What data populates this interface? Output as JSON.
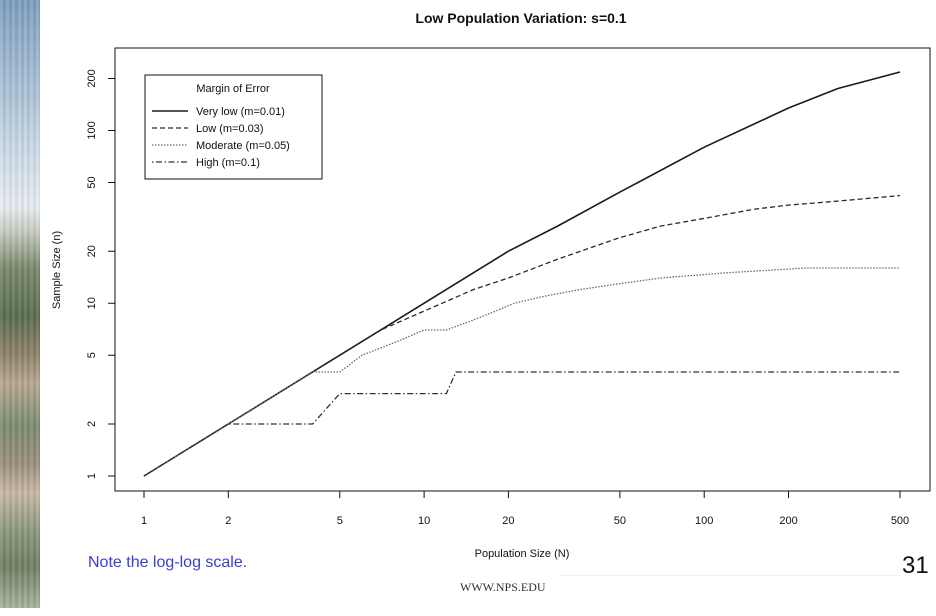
{
  "slide": {
    "note": "Note the log-log scale.",
    "footer": "WWW.NPS.EDU",
    "page_number": "31"
  },
  "chart_data": {
    "type": "line",
    "title": "Low Population Variation: s=0.1",
    "xlabel": "Population Size (N)",
    "ylabel": "Sample Size (n)",
    "x_scale": "log",
    "y_scale": "log",
    "xlim": [
      1,
      500
    ],
    "ylim": [
      1,
      230
    ],
    "x_ticks": [
      1,
      2,
      5,
      10,
      20,
      50,
      100,
      200,
      500
    ],
    "y_ticks": [
      1,
      2,
      5,
      10,
      20,
      50,
      100,
      200
    ],
    "grid": false,
    "legend": {
      "title": "Margin of Error",
      "position": "top-left"
    },
    "series": [
      {
        "name": "Very low (m=0.01)",
        "dash": "solid",
        "x": [
          1,
          2,
          5,
          10,
          20,
          30,
          50,
          100,
          200,
          300,
          500
        ],
        "y": [
          1,
          2,
          5,
          10,
          20,
          28,
          44,
          80,
          135,
          175,
          218
        ]
      },
      {
        "name": "Low (m=0.03)",
        "dash": "dashed",
        "x": [
          1,
          2,
          5,
          7,
          10,
          15,
          20,
          30,
          50,
          70,
          100,
          150,
          200,
          300,
          500
        ],
        "y": [
          1,
          2,
          5,
          7,
          9,
          12,
          14,
          18,
          24,
          28,
          31,
          35,
          37,
          39,
          42
        ]
      },
      {
        "name": "Moderate (m=0.05)",
        "dash": "dotted",
        "x": [
          1,
          2,
          4,
          5,
          6,
          8,
          10,
          12,
          15,
          18,
          21,
          27,
          36,
          50,
          70,
          120,
          230,
          500
        ],
        "y": [
          1,
          2,
          4,
          4,
          5,
          6,
          7,
          7,
          8,
          9,
          10,
          11,
          12,
          13,
          14,
          15,
          16,
          16
        ]
      },
      {
        "name": "High (m=0.1)",
        "dash": "dotdash",
        "x": [
          1,
          2,
          4,
          5,
          12,
          13,
          500
        ],
        "y": [
          1,
          2,
          2,
          3,
          3,
          4,
          4
        ]
      }
    ]
  },
  "colors": {
    "series": [
      "#1a1a1a",
      "#2a2a2a",
      "#6a6a6a",
      "#333333"
    ],
    "note": "#3b3bd6"
  }
}
